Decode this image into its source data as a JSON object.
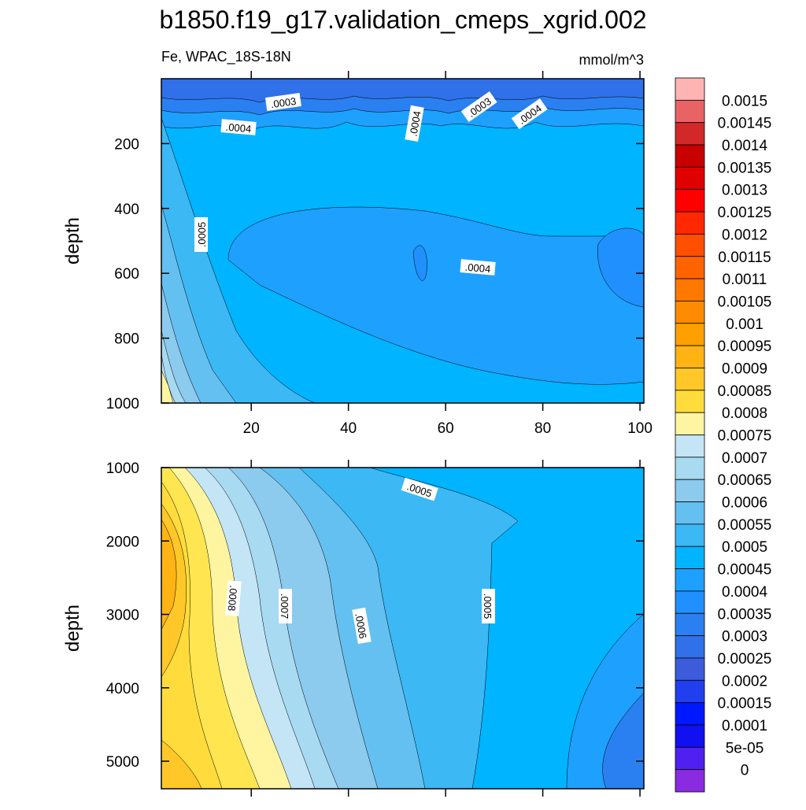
{
  "title": "b1850.f19_g17.validation_cmeps_xgrid.002",
  "chart_data": [
    {
      "type": "contour",
      "left_string": "Fe, WPAC_18S-18N",
      "right_string": "mmol/m^3",
      "ylabel": "depth",
      "xlim": [
        1.5,
        100.8
      ],
      "xticks": [
        20,
        40,
        60,
        80,
        100
      ],
      "xtick_labels_shown": true,
      "ylim": [
        1000,
        0
      ],
      "yticks": [
        200,
        400,
        600,
        800,
        1000
      ],
      "contour_labels": [
        {
          "value": 0.0003,
          "label": ".0003"
        },
        {
          "value": 0.0004,
          "label": ".0004"
        },
        {
          "value": 0.0004,
          "label": ".0004"
        },
        {
          "value": 0.0003,
          "label": ".0003"
        },
        {
          "value": 0.0004,
          "label": ".0004"
        },
        {
          "value": 0.0005,
          "label": ".0005"
        },
        {
          "value": 0.0004,
          "label": ".0004"
        }
      ]
    },
    {
      "type": "contour",
      "ylabel": "depth",
      "xlim": [
        1.5,
        100.8
      ],
      "xticks": [
        20,
        40,
        60,
        80,
        100
      ],
      "xtick_labels_shown": false,
      "ylim": [
        5375,
        1000
      ],
      "yticks": [
        1000,
        2000,
        3000,
        4000,
        5000
      ],
      "contour_labels": [
        {
          "value": 0.0005,
          "label": ".0005"
        },
        {
          "value": 0.0008,
          "label": ".0008"
        },
        {
          "value": 0.0007,
          "label": ".0007"
        },
        {
          "value": 0.0006,
          "label": ".0006"
        },
        {
          "value": 0.0005,
          "label": ".0005"
        }
      ]
    }
  ],
  "colorbar": {
    "labels": [
      0.0015,
      0.00145,
      0.0014,
      0.00135,
      0.0013,
      0.00125,
      0.0012,
      0.00115,
      0.0011,
      0.00105,
      0.001,
      0.00095,
      0.0009,
      0.00085,
      0.0008,
      0.00075,
      0.0007,
      0.00065,
      0.0006,
      0.00055,
      0.0005,
      0.00045,
      0.0004,
      0.00035,
      0.0003,
      0.00025,
      0.0002,
      0.00015,
      0.0001,
      {
        "value": 5e-05,
        "label": "5e-05"
      },
      0
    ],
    "colors": [
      "#ffb4b4",
      "#e86464",
      "#d22828",
      "#c80000",
      "#e00000",
      "#ff0000",
      "#ff2800",
      "#ff5000",
      "#ff6400",
      "#ff7800",
      "#ff8c00",
      "#ffa000",
      "#ffb414",
      "#ffc828",
      "#ffdc3c",
      "#fff5a0",
      "#c3e5f5",
      "#a8daf2",
      "#8ccaee",
      "#64c0f0",
      "#3cb8f5",
      "#00b4ff",
      "#1ea0ff",
      "#2090ff",
      "#2a80f0",
      "#3070e8",
      "#3c5cdc",
      "#2040f0",
      "#0018ff",
      "#1010f0",
      "#5020f0",
      "#8a2be2"
    ]
  }
}
